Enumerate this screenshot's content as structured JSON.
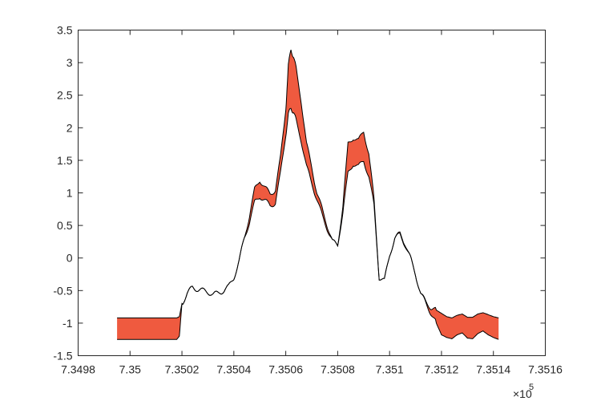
{
  "chart_data": {
    "type": "area",
    "title": "",
    "xlabel": "",
    "ylabel": "",
    "x_exponent_label": "×10",
    "x_exponent_power": "5",
    "xlim": [
      7.3498,
      7.3516
    ],
    "ylim": [
      -1.5,
      3.5
    ],
    "x_ticks": [
      7.3498,
      7.35,
      7.3502,
      7.3504,
      7.3506,
      7.3508,
      7.351,
      7.3512,
      7.3514,
      7.3516
    ],
    "x_tick_labels": [
      "7.3498",
      "7.35",
      "7.3502",
      "7.3504",
      "7.3506",
      "7.3508",
      "7.351",
      "7.3512",
      "7.3514",
      "7.3516"
    ],
    "y_ticks": [
      -1.5,
      -1,
      -0.5,
      0,
      0.5,
      1,
      1.5,
      2,
      2.5,
      3,
      3.5
    ],
    "y_tick_labels": [
      "-1.5",
      "-1",
      "-0.5",
      "0",
      "0.5",
      "1",
      "1.5",
      "2",
      "2.5",
      "3",
      "3.5"
    ],
    "grid": false,
    "colors": {
      "fill": "#ef5a3f",
      "line": "#000000",
      "axis": "#262626"
    },
    "x": [
      7.34995,
      7.35015,
      7.35018,
      7.35019,
      7.3502,
      7.35022,
      7.35024,
      7.35026,
      7.35028,
      7.3503,
      7.35032,
      7.35034,
      7.35036,
      7.35038,
      7.3504,
      7.35042,
      7.35044,
      7.35046,
      7.35048,
      7.3505,
      7.35052,
      7.35054,
      7.35056,
      7.35058,
      7.3506,
      7.35061,
      7.35062,
      7.35063,
      7.35064,
      7.35066,
      7.35068,
      7.3507,
      7.35072,
      7.35074,
      7.35076,
      7.35078,
      7.3508,
      7.35082,
      7.35084,
      7.35086,
      7.35088,
      7.3509,
      7.35092,
      7.35094,
      7.35096,
      7.35098,
      7.351,
      7.35102,
      7.35104,
      7.35106,
      7.35108,
      7.3511,
      7.35112,
      7.35114,
      7.35116,
      7.35118,
      7.3512,
      7.35122,
      7.35124,
      7.35126,
      7.35128,
      7.3513,
      7.35132,
      7.35134,
      7.35136,
      7.35138,
      7.3514,
      7.35142
    ],
    "series": [
      {
        "values": [
          -0.92,
          -0.92,
          -0.92,
          -0.9,
          -0.7,
          -0.55,
          -0.45,
          -0.48,
          -0.5,
          -0.52,
          -0.56,
          -0.54,
          -0.5,
          -0.44,
          -0.3,
          -0.05,
          0.3,
          0.65,
          1.05,
          1.2,
          1.08,
          0.98,
          1.05,
          1.55,
          2.3,
          2.95,
          3.2,
          3.1,
          2.9,
          2.4,
          1.75,
          1.4,
          1.0,
          0.75,
          0.5,
          0.25,
          0.2,
          0.8,
          1.75,
          1.85,
          1.8,
          1.95,
          1.6,
          0.9,
          -0.3,
          -0.35,
          0.05,
          0.3,
          0.38,
          0.22,
          0.0,
          -0.25,
          -0.55,
          -0.68,
          -0.76,
          -0.8,
          -0.85,
          -0.9,
          -0.92,
          -0.88,
          -0.86,
          -0.91,
          -0.91,
          -0.86,
          -0.84,
          -0.87,
          -0.9,
          -0.92
        ]
      },
      {
        "values": [
          -1.25,
          -1.25,
          -1.25,
          -1.2,
          -0.7,
          -0.55,
          -0.45,
          -0.48,
          -0.5,
          -0.52,
          -0.56,
          -0.54,
          -0.5,
          -0.44,
          -0.3,
          -0.05,
          0.3,
          0.55,
          0.85,
          0.95,
          0.88,
          0.8,
          0.85,
          1.3,
          1.9,
          2.2,
          2.3,
          2.25,
          2.1,
          1.8,
          1.4,
          1.15,
          0.9,
          0.65,
          0.45,
          0.25,
          0.2,
          0.7,
          1.3,
          1.45,
          1.4,
          1.5,
          1.25,
          0.8,
          -0.3,
          -0.35,
          0.05,
          0.3,
          0.36,
          0.2,
          0.0,
          -0.25,
          -0.55,
          -0.7,
          -0.85,
          -1.0,
          -1.18,
          -1.22,
          -1.24,
          -1.18,
          -1.15,
          -1.23,
          -1.24,
          -1.16,
          -1.12,
          -1.18,
          -1.22,
          -1.25
        ]
      }
    ]
  }
}
